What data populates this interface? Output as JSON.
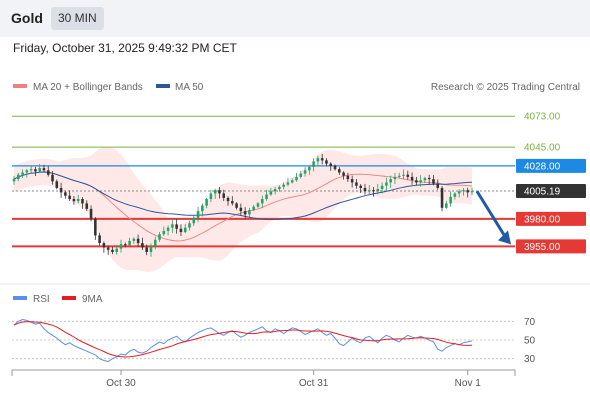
{
  "header": {
    "title": "Gold",
    "timeframe": "30 MIN"
  },
  "datetime": "Friday, October 31, 2025 9:49:32 PM CET",
  "legend": {
    "ma20_label": "MA 20 + Bollinger Bands",
    "ma50_label": "MA 50",
    "ma20_color": "#f08080",
    "ma50_color": "#2b5797",
    "research": "Research © 2025 Trading Central"
  },
  "chart_data": {
    "type": "candlestick",
    "price_axis": {
      "min": 3930,
      "max": 4085
    },
    "levels": [
      {
        "value": 4073.0,
        "label": "4073.00",
        "color": "#7cb342",
        "kind": "line"
      },
      {
        "value": 4045.0,
        "label": "4045.00",
        "color": "#7cb342",
        "kind": "line"
      },
      {
        "value": 4028.0,
        "label": "4028.00",
        "color": "#1e88e5",
        "kind": "box"
      },
      {
        "value": 4005.19,
        "label": "4005.19",
        "color": "#333333",
        "kind": "box"
      },
      {
        "value": 3980.0,
        "label": "3980.00",
        "color": "#e53935",
        "kind": "box"
      },
      {
        "value": 3955.0,
        "label": "3955.00",
        "color": "#e53935",
        "kind": "box"
      }
    ],
    "closes": [
      4016,
      4020,
      4022,
      4024,
      4025,
      4023,
      4026,
      4024,
      4020,
      4014,
      4008,
      4004,
      4001,
      3998,
      3996,
      3998,
      3994,
      3989,
      3980,
      3965,
      3958,
      3954,
      3952,
      3950,
      3953,
      3957,
      3956,
      3960,
      3962,
      3958,
      3954,
      3950,
      3955,
      3961,
      3966,
      3969,
      3972,
      3975,
      3971,
      3968,
      3972,
      3976,
      3981,
      3987,
      3992,
      3998,
      4003,
      4006,
      4003,
      3999,
      3996,
      3994,
      3990,
      3987,
      3984,
      3988,
      3991,
      3994,
      3998,
      4002,
      4005,
      4007,
      4009,
      4011,
      4013,
      4015,
      4018,
      4021,
      4024,
      4027,
      4032,
      4035,
      4033,
      4030,
      4028,
      4025,
      4022,
      4019,
      4016,
      4013,
      4010,
      4008,
      4005,
      4006,
      4005,
      4007,
      4010,
      4013,
      4016,
      4018,
      4019,
      4020,
      4018,
      4015,
      4013,
      4015,
      4017,
      4016,
      4012,
      4008,
      3990,
      3994,
      4000,
      4003,
      4005,
      4006,
      4004,
      4005
    ],
    "x_ticks": [
      {
        "label": "Oct 30",
        "index": 25
      },
      {
        "label": "Oct 31",
        "index": 70
      },
      {
        "label": "Nov 1",
        "index": 106
      }
    ],
    "forecast": {
      "from": 4005,
      "to": 3955
    },
    "rsi": {
      "legend_rsi": "RSI",
      "legend_9ma": "9MA",
      "rsi_color": "#5b8def",
      "ma_color": "#e02020",
      "ticks": [
        70,
        50,
        30
      ],
      "ylim": [
        20,
        80
      ],
      "values": [
        66,
        70,
        72,
        71,
        69,
        67,
        68,
        62,
        58,
        55,
        52,
        48,
        45,
        47,
        44,
        42,
        40,
        38,
        36,
        34,
        30,
        28,
        27,
        30,
        32,
        35,
        34,
        38,
        40,
        37,
        36,
        38,
        42,
        45,
        48,
        46,
        50,
        52,
        54,
        50,
        48,
        52,
        55,
        58,
        60,
        62,
        63,
        60,
        57,
        55,
        58,
        60,
        56,
        53,
        55,
        58,
        60,
        62,
        64,
        60,
        58,
        62,
        60,
        57,
        60,
        63,
        62,
        59,
        56,
        58,
        60,
        62,
        58,
        55,
        57,
        52,
        46,
        44,
        48,
        52,
        49,
        47,
        52,
        54,
        50,
        47,
        52,
        55,
        53,
        50,
        48,
        52,
        55,
        53,
        52,
        54,
        52,
        50,
        48,
        40,
        38,
        42,
        44,
        46,
        45,
        47,
        48,
        49
      ]
    }
  }
}
